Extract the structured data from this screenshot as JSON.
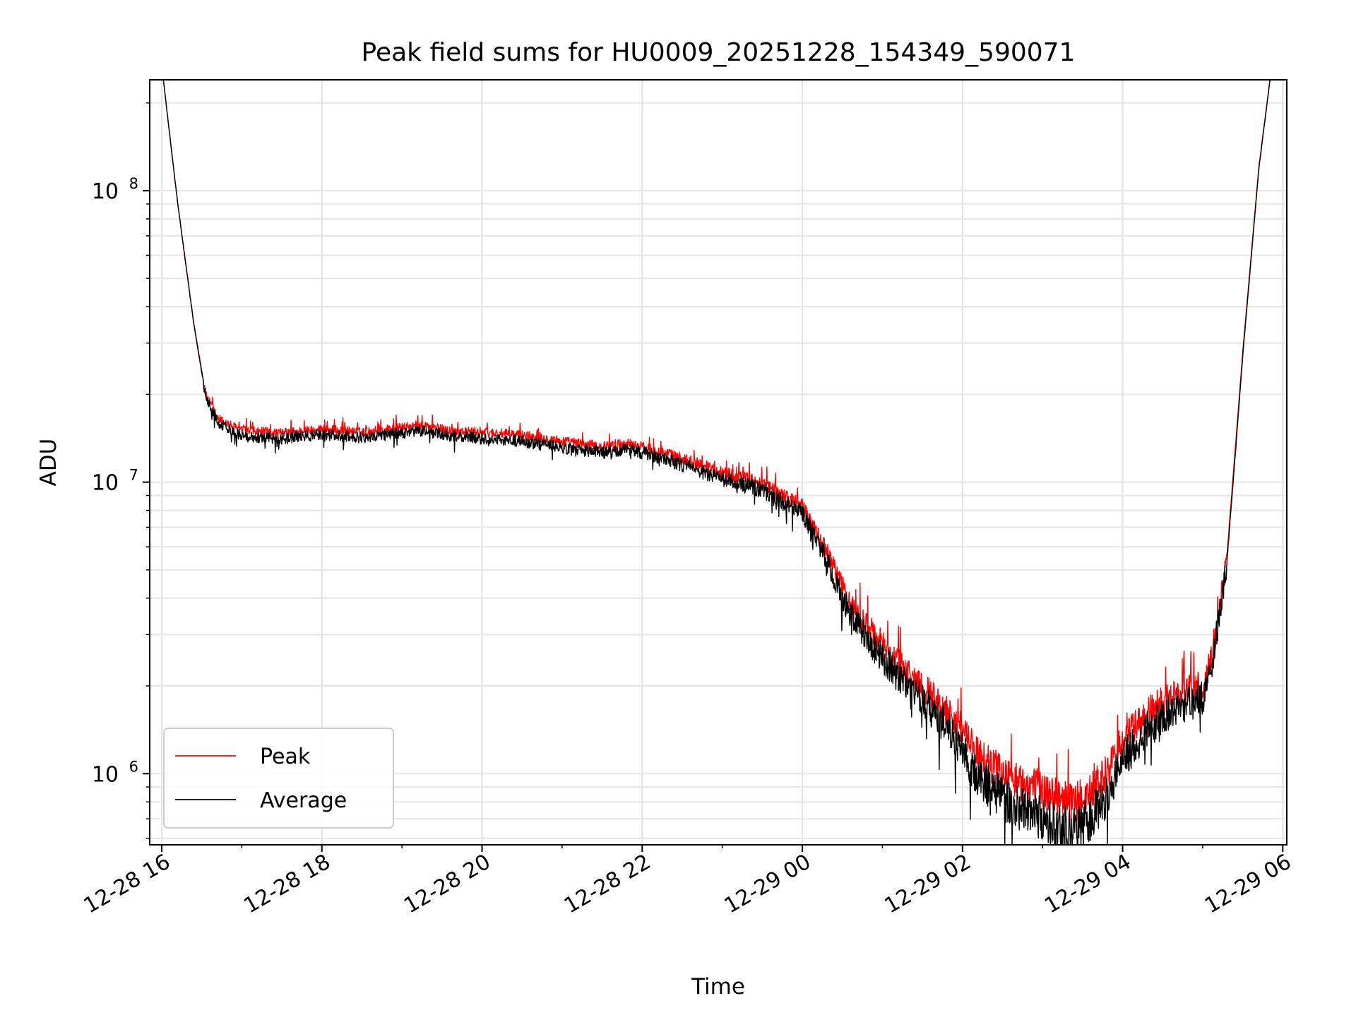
{
  "chart_data": {
    "type": "line",
    "title": "Peak field sums for HU0009_20251228_154349_590071",
    "xlabel": "Time",
    "ylabel": "ADU",
    "yscale": "log",
    "ylim": [
      570000,
      240000000
    ],
    "xlim_hours": [
      15.85,
      30.05
    ],
    "x_unit": "hours since 2025-12-28 00:00",
    "grid": "both",
    "legend_position": "lower left",
    "x_ticks": [
      {
        "value": 16,
        "label": "12-28 16"
      },
      {
        "value": 18,
        "label": "12-28 18"
      },
      {
        "value": 20,
        "label": "12-28 20"
      },
      {
        "value": 22,
        "label": "12-28 22"
      },
      {
        "value": 24,
        "label": "12-29 00"
      },
      {
        "value": 26,
        "label": "12-29 02"
      },
      {
        "value": 28,
        "label": "12-29 04"
      },
      {
        "value": 30,
        "label": "12-29 06"
      }
    ],
    "y_ticks": [
      {
        "value": 1000000,
        "base": "10",
        "exp": "6"
      },
      {
        "value": 10000000,
        "base": "10",
        "exp": "7"
      },
      {
        "value": 100000000,
        "base": "10",
        "exp": "8"
      }
    ],
    "series": [
      {
        "name": "Peak",
        "color": "#ff0000",
        "noise_amplitude": 0.045,
        "x": [
          16.02,
          16.2,
          16.4,
          16.55,
          16.7,
          17.0,
          17.5,
          18.0,
          18.5,
          19.0,
          19.3,
          19.6,
          20.0,
          20.5,
          21.0,
          21.5,
          21.8,
          22.2,
          22.6,
          23.0,
          23.5,
          24.0,
          24.3,
          24.6,
          24.9,
          25.2,
          25.5,
          25.8,
          26.0,
          26.2,
          26.6,
          27.0,
          27.2,
          27.4,
          27.6,
          27.8,
          28.0,
          28.3,
          28.6,
          29.0,
          29.1,
          29.3,
          29.5,
          29.7,
          29.84
        ],
        "y": [
          240000000,
          90000000,
          35000000,
          20000000,
          16500000,
          15000000,
          14700000,
          15200000,
          14800000,
          15400000,
          15600000,
          15000000,
          14800000,
          14500000,
          13800000,
          13200000,
          13600000,
          12800000,
          11800000,
          10800000,
          9900000,
          8300000,
          5800000,
          3800000,
          3000000,
          2400000,
          2000000,
          1650000,
          1400000,
          1150000,
          960000,
          880000,
          830000,
          800000,
          860000,
          1000000,
          1300000,
          1600000,
          1850000,
          2000000,
          2400000,
          5500000,
          28000000,
          120000000,
          240000000
        ]
      },
      {
        "name": "Average",
        "color": "#000000",
        "noise_amplitude": 0.05,
        "x": [
          16.02,
          16.2,
          16.4,
          16.55,
          16.7,
          17.0,
          17.5,
          18.0,
          18.5,
          19.0,
          19.3,
          19.6,
          20.0,
          20.5,
          21.0,
          21.5,
          21.8,
          22.2,
          22.6,
          23.0,
          23.5,
          24.0,
          24.3,
          24.6,
          24.9,
          25.2,
          25.5,
          25.8,
          26.0,
          26.2,
          26.6,
          27.0,
          27.2,
          27.4,
          27.6,
          27.8,
          28.0,
          28.3,
          28.6,
          29.0,
          29.1,
          29.3,
          29.5,
          29.7,
          29.84
        ],
        "y": [
          240000000,
          90000000,
          35000000,
          19500000,
          16000000,
          14400000,
          14100000,
          14600000,
          14200000,
          14800000,
          15000000,
          14400000,
          14100000,
          13800000,
          13100000,
          12600000,
          13000000,
          12200000,
          11200000,
          10200000,
          9400000,
          7800000,
          5400000,
          3500000,
          2700000,
          2150000,
          1780000,
          1450000,
          1200000,
          970000,
          780000,
          700000,
          660000,
          640000,
          700000,
          840000,
          1120000,
          1400000,
          1650000,
          1820000,
          2200000,
          5200000,
          27000000,
          118000000,
          240000000
        ]
      }
    ]
  }
}
